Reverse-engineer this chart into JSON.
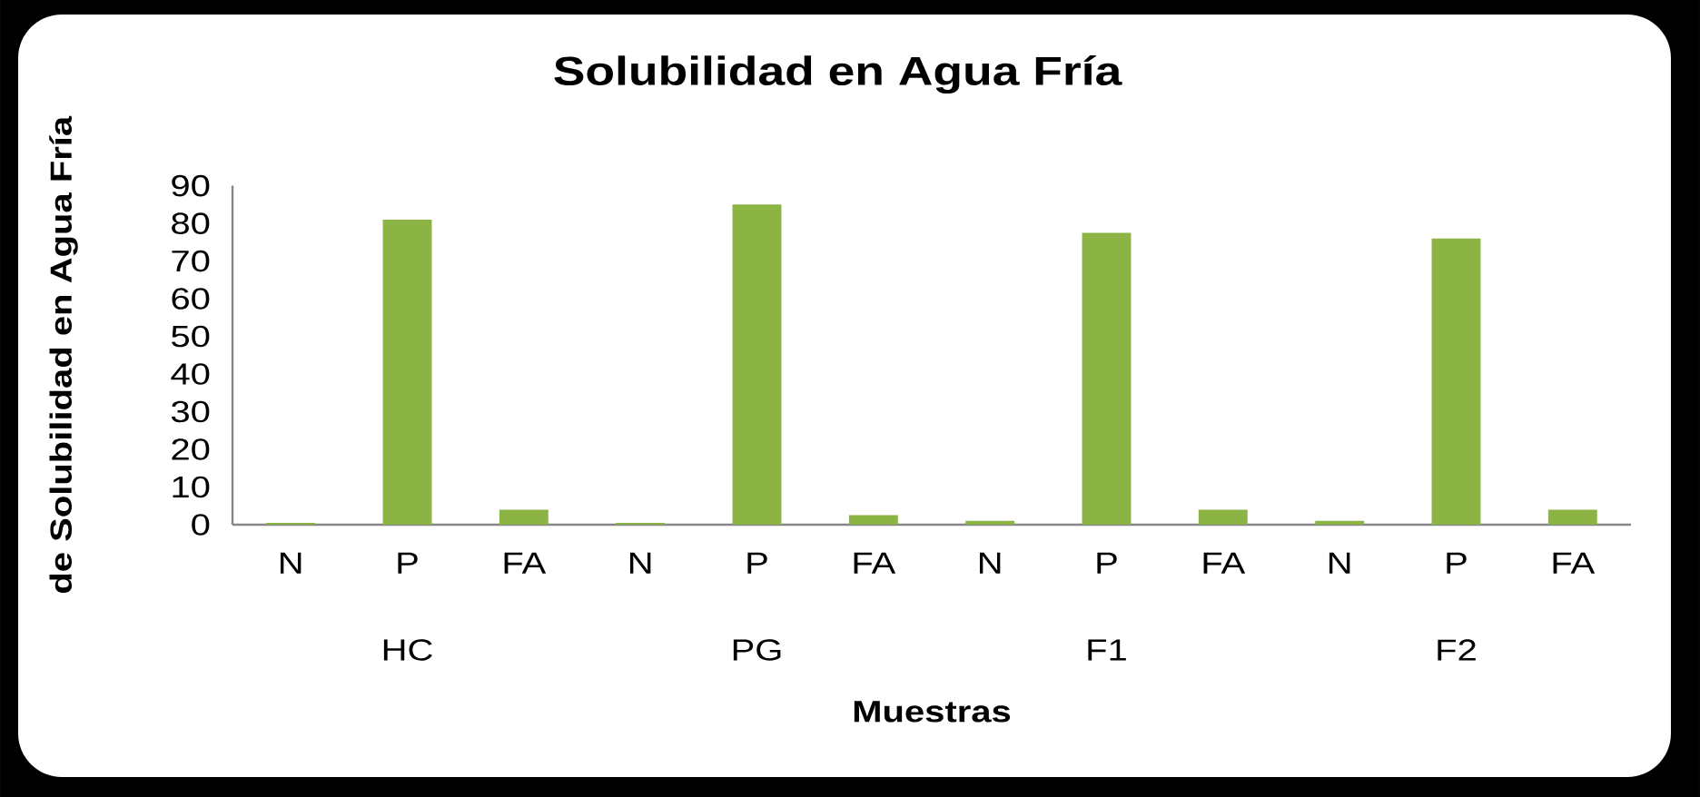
{
  "chart_data": {
    "type": "bar",
    "title": "Solubilidad en Agua Fría",
    "xlabel": "Muestras",
    "ylabel": "de Solubilidad en Agua Fría",
    "categories": [
      "HC",
      "PG",
      "F1",
      "F2"
    ],
    "series": [
      {
        "name": "N",
        "color": "#8cb445",
        "values": [
          0.5,
          0.5,
          1,
          1
        ]
      },
      {
        "name": "P",
        "color": "#8cb445",
        "values": [
          81,
          85,
          77.5,
          76
        ]
      },
      {
        "name": "FA",
        "color": "#8cb445",
        "values": [
          4,
          2.5,
          4,
          4
        ]
      }
    ],
    "ylim": [
      0,
      90
    ],
    "yticks": [
      0,
      10,
      20,
      30,
      40,
      50,
      60,
      70,
      80,
      90
    ]
  }
}
